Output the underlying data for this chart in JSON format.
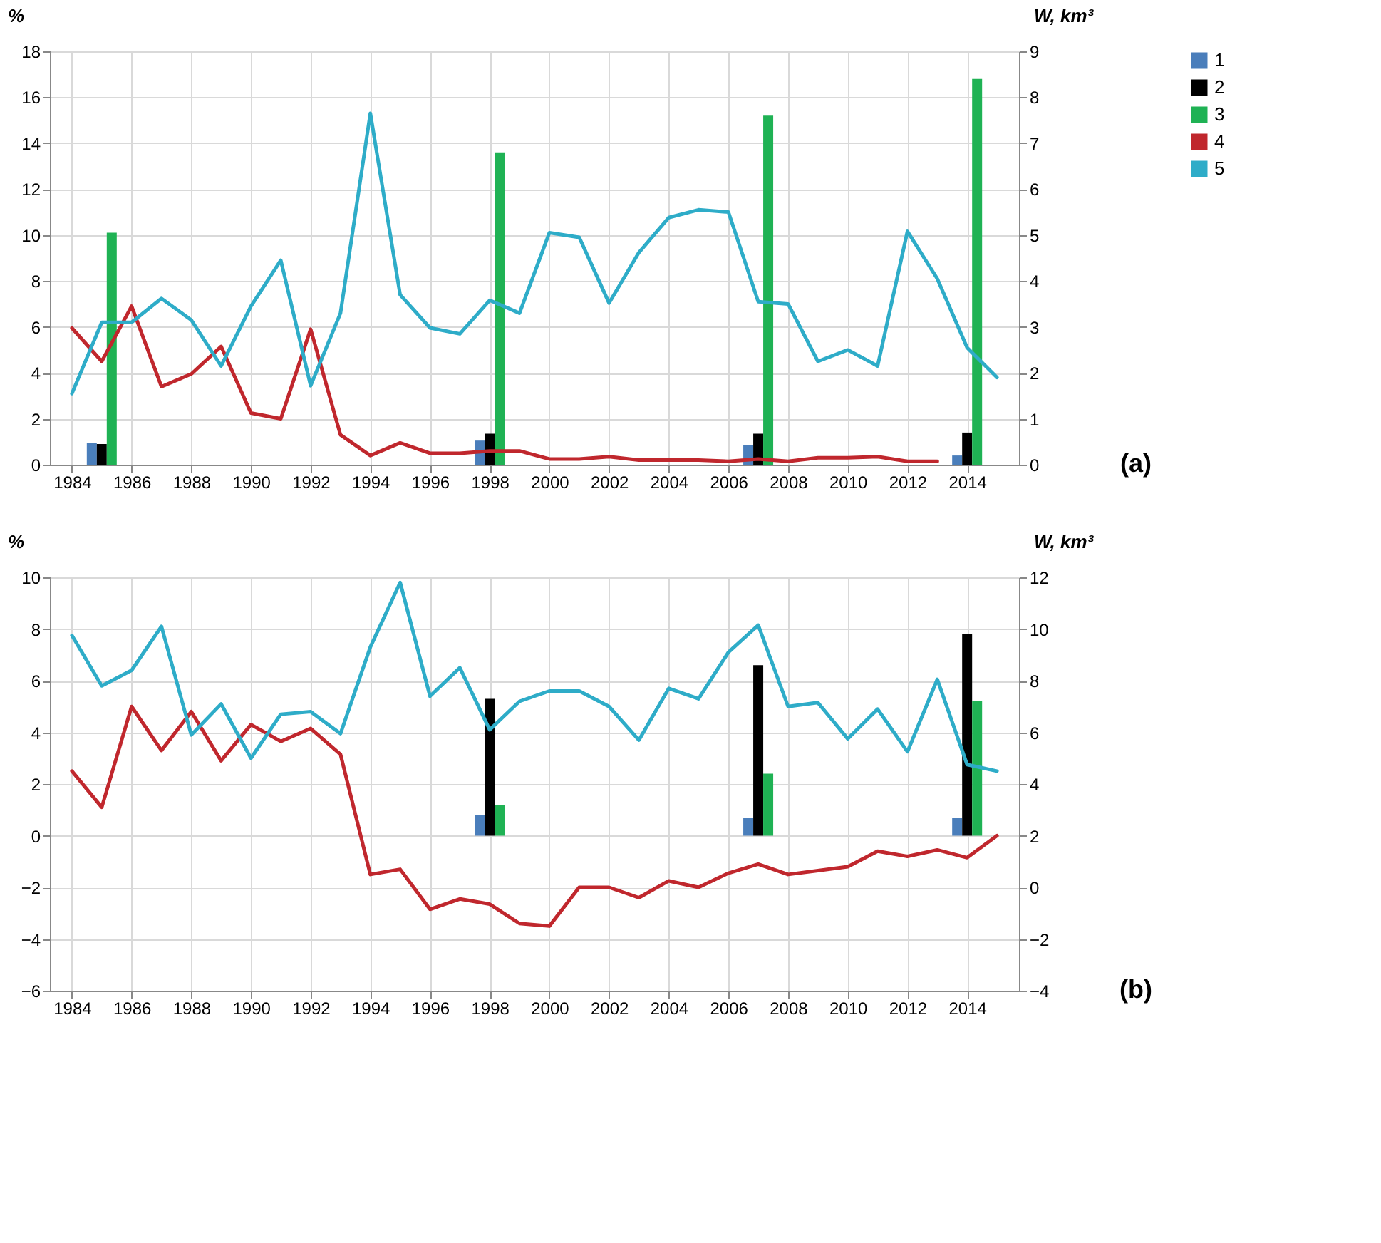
{
  "chart_data": [
    {
      "type": "bar",
      "ylabel": "%",
      "y2label": "W, km³",
      "annotations": [
        "(a)"
      ],
      "legend": "right",
      "grid": true,
      "categories": [
        "1984",
        null,
        "1986",
        null,
        "1988",
        null,
        "1990",
        null,
        "1992",
        null,
        "1994",
        null,
        "1996",
        null,
        "1998",
        null,
        "2000",
        null,
        "2002",
        null,
        "2004",
        null,
        "2006",
        null,
        "2008",
        null,
        "2010",
        null,
        "2012",
        null,
        "2014",
        null
      ],
      "ylim": [
        0,
        18
      ],
      "yticks": [
        0,
        2,
        4,
        6,
        8,
        10,
        12,
        14,
        16,
        18
      ],
      "y2lim": [
        0,
        9
      ],
      "y2ticks": [
        0,
        1,
        2,
        3,
        4,
        5,
        6,
        7,
        8,
        9
      ],
      "series": [
        {
          "name": "1",
          "color": "#4a7ebb",
          "values": [
            null,
            0.95,
            null,
            null,
            null,
            null,
            null,
            null,
            null,
            null,
            null,
            null,
            null,
            null,
            1.05,
            null,
            null,
            null,
            null,
            null,
            null,
            null,
            null,
            0.85,
            null,
            null,
            null,
            null,
            null,
            null,
            0.4,
            null
          ]
        },
        {
          "name": "2",
          "color": "#000000",
          "values": [
            null,
            0.9,
            null,
            null,
            null,
            null,
            null,
            null,
            null,
            null,
            null,
            null,
            null,
            null,
            1.35,
            null,
            null,
            null,
            null,
            null,
            null,
            null,
            null,
            1.35,
            null,
            null,
            null,
            null,
            null,
            null,
            1.4,
            null
          ]
        },
        {
          "name": "3",
          "color": "#1fb254",
          "values": [
            null,
            10.1,
            null,
            null,
            null,
            null,
            null,
            null,
            null,
            null,
            null,
            null,
            null,
            null,
            13.6,
            null,
            null,
            null,
            null,
            null,
            null,
            null,
            null,
            15.2,
            null,
            null,
            null,
            null,
            null,
            null,
            16.8,
            null
          ]
        },
        {
          "name": "4",
          "color": "#c0272d",
          "type": "line",
          "values": [
            5.95,
            4.5,
            6.9,
            3.4,
            3.95,
            5.15,
            2.25,
            2.0,
            5.9,
            1.3,
            0.4,
            0.95,
            0.5,
            0.5,
            0.6,
            0.6,
            0.25,
            0.25,
            0.35,
            0.2,
            0.2,
            0.2,
            0.15,
            0.25,
            0.15,
            0.3,
            0.3,
            0.35,
            0.15,
            0.15,
            null,
            null
          ]
        },
        {
          "name": "5",
          "color": "#2eacc8",
          "type": "line",
          "axis": "y2",
          "values": [
            1.55,
            3.1,
            3.1,
            3.62,
            3.15,
            2.15,
            3.45,
            4.45,
            1.72,
            3.3,
            7.65,
            3.7,
            2.98,
            2.85,
            3.58,
            3.3,
            5.05,
            4.95,
            3.52,
            4.62,
            5.38,
            5.55,
            5.5,
            3.55,
            3.5,
            2.25,
            2.5,
            2.15,
            5.08,
            4.05,
            2.55,
            1.9
          ]
        }
      ]
    },
    {
      "type": "bar",
      "ylabel": "%",
      "y2label": "W, km³",
      "annotations": [
        "(b)"
      ],
      "legend": "right",
      "grid": true,
      "categories": [
        "1984",
        null,
        "1986",
        null,
        "1988",
        null,
        "1990",
        null,
        "1992",
        null,
        "1994",
        null,
        "1996",
        null,
        "1998",
        null,
        "2000",
        null,
        "2002",
        null,
        "2004",
        null,
        "2006",
        null,
        "2008",
        null,
        "2010",
        null,
        "2012",
        null,
        "2014",
        null
      ],
      "ylim": [
        -6,
        10
      ],
      "yticks": [
        -6,
        -4,
        -2,
        0,
        2,
        4,
        6,
        8,
        10
      ],
      "y2lim": [
        -4,
        12
      ],
      "y2ticks": [
        -4,
        -2,
        0,
        2,
        4,
        6,
        8,
        10,
        12
      ],
      "series": [
        {
          "name": "1",
          "color": "#4a7ebb",
          "values": [
            null,
            null,
            null,
            null,
            null,
            null,
            null,
            null,
            null,
            null,
            null,
            null,
            null,
            null,
            0.8,
            null,
            null,
            null,
            null,
            null,
            null,
            null,
            null,
            0.7,
            null,
            null,
            null,
            null,
            null,
            null,
            0.7,
            null
          ]
        },
        {
          "name": "2",
          "color": "#000000",
          "values": [
            null,
            null,
            null,
            null,
            null,
            null,
            null,
            null,
            null,
            null,
            null,
            null,
            null,
            null,
            5.3,
            null,
            null,
            null,
            null,
            null,
            null,
            null,
            null,
            6.6,
            null,
            null,
            null,
            null,
            null,
            null,
            7.8,
            null
          ]
        },
        {
          "name": "3",
          "color": "#1fb254",
          "values": [
            null,
            null,
            null,
            null,
            null,
            null,
            null,
            null,
            null,
            null,
            null,
            null,
            null,
            null,
            1.2,
            null,
            null,
            null,
            null,
            null,
            null,
            null,
            null,
            2.4,
            null,
            null,
            null,
            null,
            null,
            null,
            5.2,
            null
          ]
        },
        {
          "name": "4",
          "color": "#c0272d",
          "type": "line",
          "values": [
            2.5,
            1.1,
            5.0,
            3.3,
            4.8,
            2.9,
            4.3,
            3.65,
            4.15,
            3.15,
            -1.5,
            -1.3,
            -2.85,
            -2.45,
            -2.65,
            -3.4,
            -3.5,
            -2.0,
            -2.0,
            -2.4,
            -1.75,
            -2.0,
            -1.45,
            -1.1,
            -1.5,
            -1.35,
            -1.2,
            -0.6,
            -0.8,
            -0.55,
            -0.85,
            0.0
          ]
        },
        {
          "name": "5",
          "color": "#2eacc8",
          "type": "line",
          "axis": "y2",
          "values": [
            9.75,
            7.8,
            8.4,
            10.1,
            5.9,
            7.1,
            5.0,
            6.7,
            6.8,
            5.95,
            9.3,
            11.8,
            7.4,
            8.5,
            6.1,
            7.2,
            7.6,
            7.6,
            7.0,
            5.7,
            7.7,
            7.3,
            9.1,
            10.15,
            7.0,
            7.15,
            5.75,
            6.9,
            5.25,
            8.05,
            4.75,
            4.5
          ]
        }
      ]
    }
  ]
}
